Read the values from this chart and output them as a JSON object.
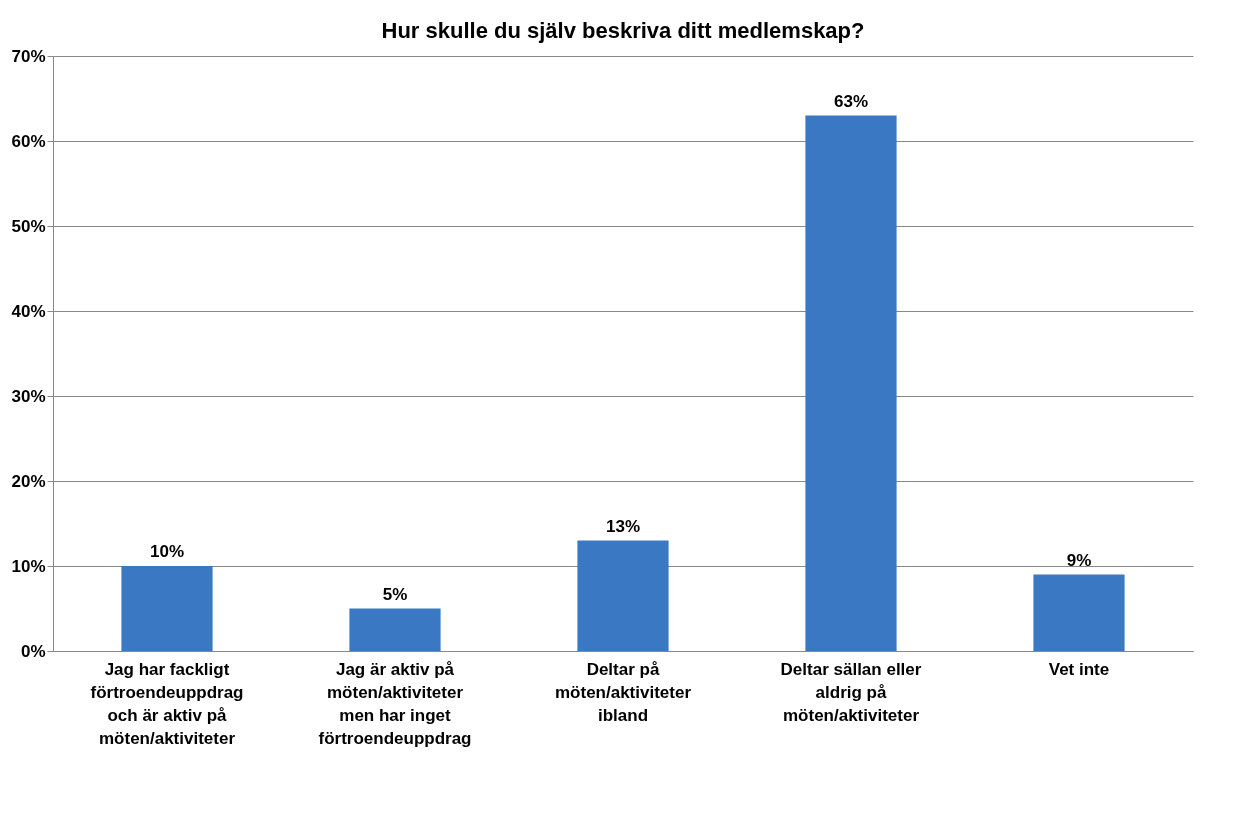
{
  "chart_data": {
    "type": "bar",
    "title": "Hur skulle du själv beskriva ditt medlemskap?",
    "categories": [
      "Jag har fackligt förtroendeuppdrag och är aktiv på möten/aktiviteter",
      "Jag är aktiv på möten/aktiviteter men har inget förtroendeuppdrag",
      "Deltar på möten/aktiviteter ibland",
      "Deltar sällan eller aldrig på möten/aktiviteter",
      "Vet inte"
    ],
    "values": [
      10,
      5,
      13,
      63,
      9
    ],
    "value_labels": [
      "10%",
      "5%",
      "13%",
      "63%",
      "9%"
    ],
    "color": "#3a78c4",
    "ylim": [
      0,
      70
    ],
    "yticks": [
      {
        "value": 0,
        "label": "0%"
      },
      {
        "value": 10,
        "label": "10%"
      },
      {
        "value": 20,
        "label": "20%"
      },
      {
        "value": 30,
        "label": "30%"
      },
      {
        "value": 40,
        "label": "40%"
      },
      {
        "value": 50,
        "label": "50%"
      },
      {
        "value": 60,
        "label": "60%"
      },
      {
        "value": 70,
        "label": "70%"
      }
    ],
    "grid": "y"
  }
}
